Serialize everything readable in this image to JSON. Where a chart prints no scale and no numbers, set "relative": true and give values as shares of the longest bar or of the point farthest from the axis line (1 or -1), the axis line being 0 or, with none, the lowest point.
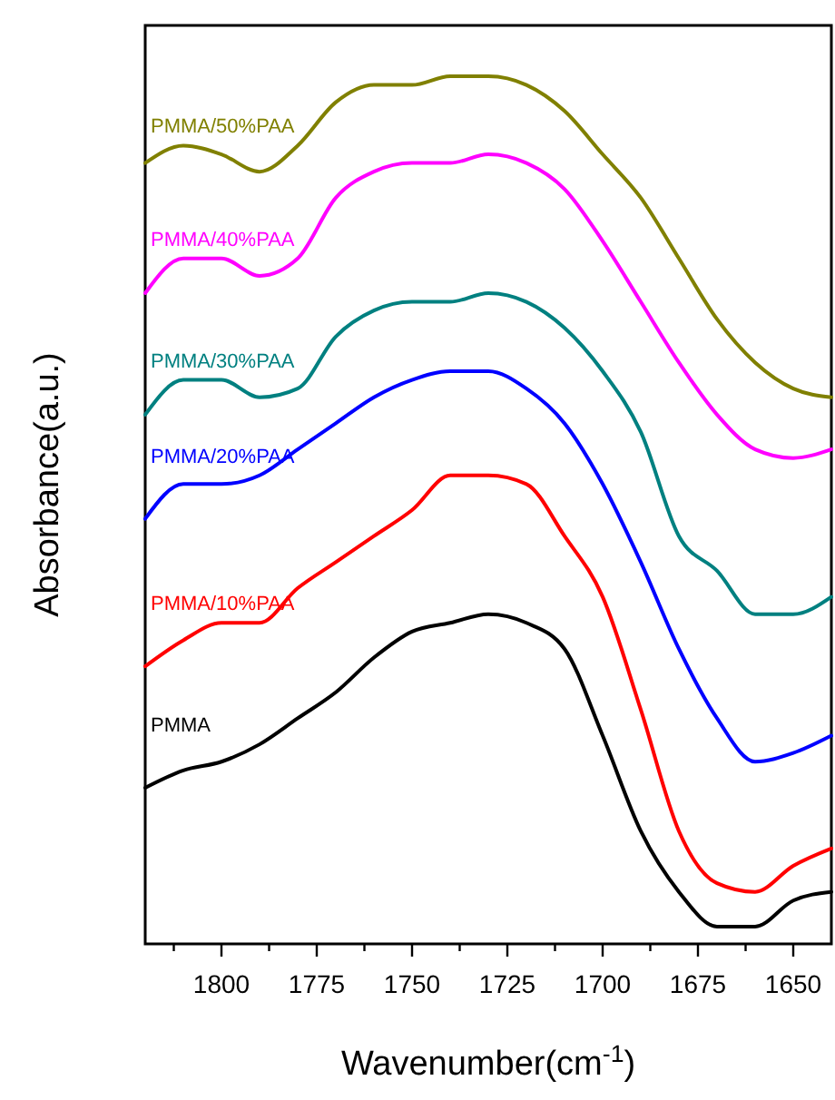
{
  "chart_data": {
    "type": "line",
    "relative": true,
    "xlabel": "Wavenumber(cm$^{-1}$)",
    "ylabel": "Absorbance(a.u.)",
    "x": [
      1820,
      1810,
      1800,
      1790,
      1780,
      1770,
      1760,
      1750,
      1740,
      1730,
      1720,
      1710,
      1700,
      1690,
      1680,
      1670,
      1660,
      1650,
      1640
    ],
    "xlim": [
      1820,
      1640
    ],
    "xticks": [
      {
        "value": 1812.5,
        "label": null
      },
      1800,
      {
        "value": 1787.5,
        "label": null
      },
      1775,
      {
        "value": 1762.5,
        "label": null
      },
      1750,
      {
        "value": 1737.5,
        "label": null
      },
      1725,
      {
        "value": 1712.5,
        "label": null
      },
      1700,
      {
        "value": 1687.5,
        "label": null
      },
      1675,
      {
        "value": 1662.5,
        "label": null
      },
      1650
    ],
    "marker": "none",
    "line_style": "solid",
    "grid": false,
    "series": [
      {
        "name": "PMMA/50%PAA",
        "color": "#808000",
        "values": [
          0.9,
          0.92,
          0.91,
          0.89,
          0.92,
          0.97,
          0.99,
          0.99,
          1.0,
          1.0,
          0.99,
          0.96,
          0.91,
          0.86,
          0.79,
          0.72,
          0.67,
          0.64,
          0.63
        ]
      },
      {
        "name": "PMMA/40%PAA",
        "color": "#ff00ff",
        "values": [
          0.75,
          0.79,
          0.79,
          0.77,
          0.79,
          0.86,
          0.89,
          0.9,
          0.9,
          0.91,
          0.9,
          0.87,
          0.81,
          0.74,
          0.67,
          0.61,
          0.57,
          0.56,
          0.57
        ]
      },
      {
        "name": "PMMA/30%PAA",
        "color": "#008080",
        "values": [
          0.61,
          0.65,
          0.65,
          0.63,
          0.64,
          0.7,
          0.73,
          0.74,
          0.74,
          0.75,
          0.74,
          0.71,
          0.66,
          0.59,
          0.47,
          0.43,
          0.38,
          0.38,
          0.4
        ]
      },
      {
        "name": "PMMA/20%PAA",
        "color": "#0000ff",
        "values": [
          0.49,
          0.53,
          0.53,
          0.54,
          0.57,
          0.6,
          0.63,
          0.65,
          0.66,
          0.66,
          0.64,
          0.6,
          0.53,
          0.44,
          0.34,
          0.26,
          0.21,
          0.22,
          0.24
        ]
      },
      {
        "name": "PMMA/10%PAA",
        "color": "#ff0000",
        "values": [
          0.32,
          0.35,
          0.37,
          0.37,
          0.41,
          0.44,
          0.47,
          0.5,
          0.54,
          0.54,
          0.53,
          0.47,
          0.4,
          0.27,
          0.13,
          0.07,
          0.06,
          0.09,
          0.11
        ]
      },
      {
        "name": "PMMA",
        "color": "#000000",
        "values": [
          0.18,
          0.2,
          0.21,
          0.23,
          0.26,
          0.29,
          0.33,
          0.36,
          0.37,
          0.38,
          0.37,
          0.34,
          0.24,
          0.13,
          0.06,
          0.02,
          0.02,
          0.05,
          0.06
        ]
      }
    ]
  }
}
